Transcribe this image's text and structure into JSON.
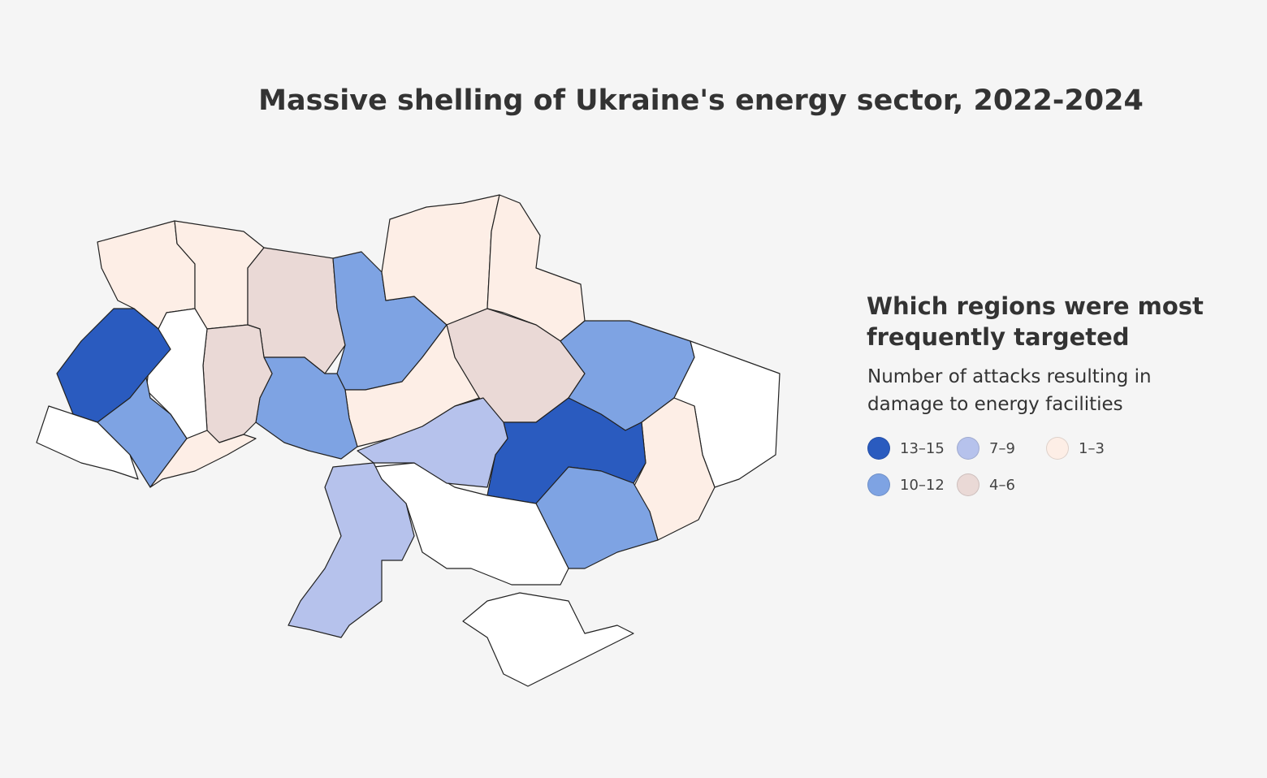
{
  "title": "Massive shelling of Ukraine's energy sector, 2022-2024",
  "legend": {
    "title": "Which regions were most frequently targeted",
    "subtitle": "Number of attacks resulting in damage to energy facilities",
    "items": [
      {
        "label": "13–15",
        "color": "#2a5bbf"
      },
      {
        "label": "10–12",
        "color": "#7ea3e3"
      },
      {
        "label": "7–9",
        "color": "#b6c2ec"
      },
      {
        "label": "4–6",
        "color": "#ead9d6"
      },
      {
        "label": "1–3",
        "color": "#fdeee6"
      }
    ]
  }
}
